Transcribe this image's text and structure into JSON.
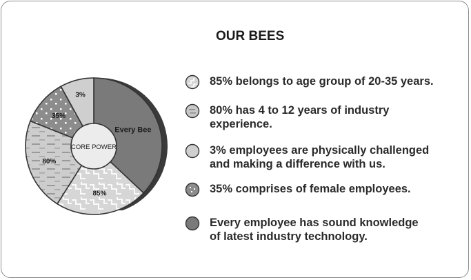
{
  "title": "OUR BEES",
  "center_label": "CORE POWER",
  "colors": {
    "bees": "#7a7a7a",
    "age": "#d6d6d6",
    "experience": "#c8c8c8",
    "challenged": "#cfcfcf",
    "female": "#8c8c8c",
    "shadow": "#3a3a3a"
  },
  "legend": [
    {
      "key": "age",
      "pattern": "zigzag",
      "lines": [
        "85% belongs to age group of 20-35 years."
      ]
    },
    {
      "key": "experience",
      "pattern": "dashes",
      "lines": [
        "80% has 4 to 12 years of industry",
        "experience."
      ]
    },
    {
      "key": "challenged",
      "pattern": "plain-light",
      "lines": [
        "3% employees are physically challenged",
        "and making a difference with us."
      ]
    },
    {
      "key": "female",
      "pattern": "dots",
      "lines": [
        "35% comprises of female employees."
      ]
    },
    {
      "key": "bees",
      "pattern": "plain-dark",
      "lines": [
        "Every employee has sound knowledge",
        "of latest industry technology."
      ]
    }
  ],
  "chart_data": {
    "type": "pie",
    "center_label": "CORE POWER",
    "slices": [
      {
        "label": "Every Bee",
        "key": "bees",
        "value": 37,
        "pattern": "plain-dark"
      },
      {
        "label": "85%",
        "key": "age",
        "value": 22,
        "pattern": "zigzag"
      },
      {
        "label": "80%",
        "key": "experience",
        "value": 22,
        "pattern": "dashes"
      },
      {
        "label": "35%",
        "key": "female",
        "value": 11,
        "pattern": "dots"
      },
      {
        "label": "3%",
        "key": "challenged",
        "value": 8,
        "pattern": "plain-light"
      }
    ]
  }
}
